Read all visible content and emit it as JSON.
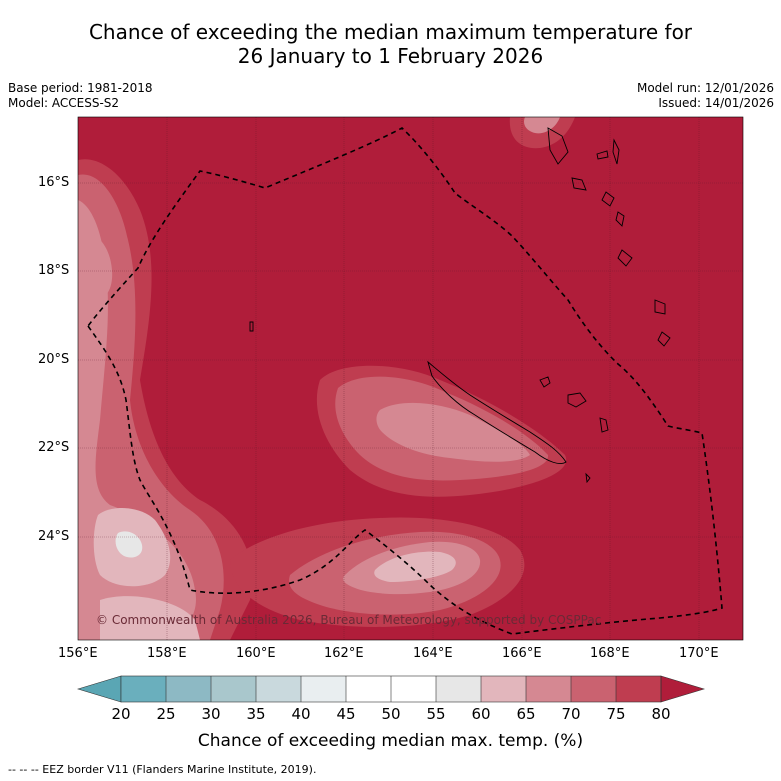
{
  "title": {
    "line1": "Chance of exceeding the median maximum temperature for",
    "line2": "26 January to 1 February 2026"
  },
  "meta": {
    "base_period": "Base period: 1981-2018",
    "model": "Model: ACCESS-S2",
    "model_run": "Model run: 12/01/2026",
    "issued": "Issued: 14/01/2026"
  },
  "map": {
    "lon_labels": [
      "156°E",
      "158°E",
      "160°E",
      "162°E",
      "164°E",
      "166°E",
      "168°E",
      "170°E"
    ],
    "lat_labels": [
      "16°S",
      "18°S",
      "20°S",
      "22°S",
      "24°S"
    ],
    "copyright": "© Commonwealth of Australia 2026, Bureau of Meteorology, supported by COSPPac"
  },
  "colorbar": {
    "ticks": [
      "20",
      "25",
      "30",
      "35",
      "40",
      "45",
      "50",
      "55",
      "60",
      "65",
      "70",
      "75",
      "80"
    ],
    "colors": [
      "#5aa6b4",
      "#6aafbd",
      "#8db9c4",
      "#a9c7cc",
      "#c9d9dd",
      "#e9eef0",
      "#ffffff",
      "#ffffff",
      "#e7e7e7",
      "#e2b6bc",
      "#d58892",
      "#ca6270",
      "#bf3d50",
      "#b01d3a"
    ],
    "label": "Chance of exceeding median max. temp. (%)"
  },
  "footer": "--  --  -- EEZ border V11 (Flanders Marine Institute, 2019)."
}
